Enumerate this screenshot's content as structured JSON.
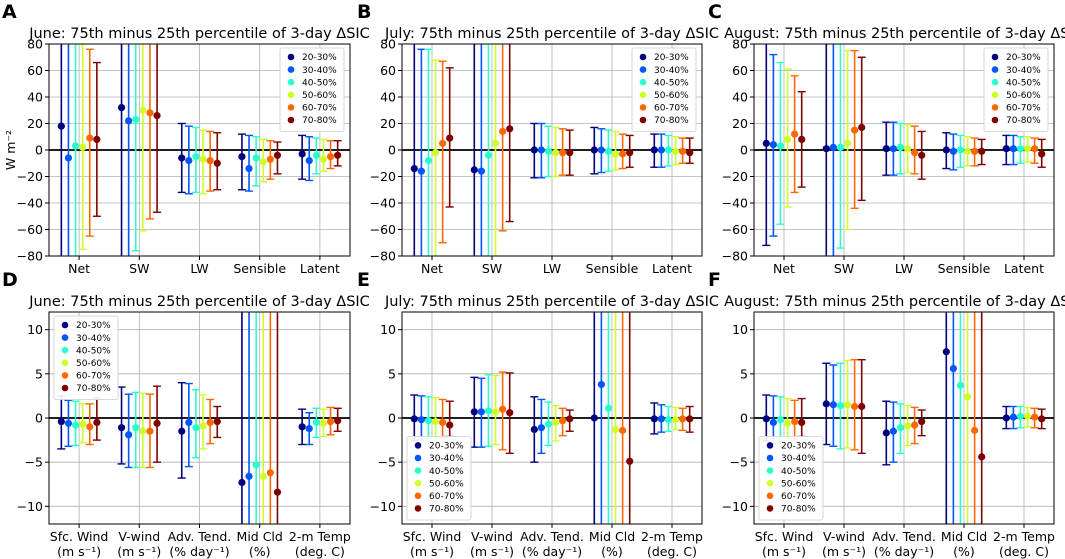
{
  "legend_labels": [
    "20-30%",
    "30-40%",
    "40-50%",
    "50-60%",
    "60-70%",
    "70-80%"
  ],
  "bin_colors": [
    "#00007f",
    "#0055ff",
    "#29ffce",
    "#ceff29",
    "#ff6800",
    "#7f0000"
  ],
  "chart_data": [
    {
      "type": "errorbar",
      "panel_letter": "A",
      "title": "June: 75th minus 25th percentile of 3-day ΔSIC",
      "ylabel": "W m⁻²",
      "ylim": [
        -80,
        80
      ],
      "yticks": [
        -80,
        -60,
        -40,
        -20,
        0,
        20,
        40,
        60,
        80
      ],
      "grid": true,
      "legend_position": "top-right",
      "categories": [
        "Net",
        "SW",
        "LW",
        "Sensible",
        "Latent"
      ],
      "series": [
        {
          "name": "20-30%",
          "values": [
            18,
            32,
            -6,
            -5,
            -3
          ],
          "lower": [
            -120,
            -120,
            -32,
            -30,
            -22
          ],
          "upper": [
            120,
            120,
            20,
            12,
            11
          ]
        },
        {
          "name": "30-40%",
          "values": [
            -6,
            22,
            -8,
            -14,
            -8
          ],
          "lower": [
            -120,
            -120,
            -33,
            -31,
            -23
          ],
          "upper": [
            120,
            120,
            18,
            11,
            10
          ]
        },
        {
          "name": "40-50%",
          "values": [
            3,
            23,
            -5,
            -6,
            -4
          ],
          "lower": [
            -120,
            -76,
            -32,
            -27,
            -18
          ],
          "upper": [
            120,
            120,
            17,
            10,
            9
          ]
        },
        {
          "name": "50-60%",
          "values": [
            2,
            30,
            -7,
            -9,
            -7
          ],
          "lower": [
            -75,
            -61,
            -33,
            -24,
            -16
          ],
          "upper": [
            80,
            120,
            15,
            8,
            8
          ]
        },
        {
          "name": "60-70%",
          "values": [
            9,
            28,
            -8,
            -7,
            -5
          ],
          "lower": [
            -65,
            -52,
            -31,
            -22,
            -14
          ],
          "upper": [
            76,
            120,
            14,
            7,
            7
          ]
        },
        {
          "name": "70-80%",
          "values": [
            8,
            26,
            -10,
            -4,
            -4
          ],
          "lower": [
            -50,
            -47,
            -30,
            -18,
            -12
          ],
          "upper": [
            66,
            120,
            13,
            6,
            7
          ]
        }
      ]
    },
    {
      "type": "errorbar",
      "panel_letter": "B",
      "title": "July: 75th minus 25th percentile of 3-day ΔSIC",
      "ylabel": "",
      "ylim": [
        -80,
        80
      ],
      "yticks": [
        -80,
        -60,
        -40,
        -20,
        0,
        20,
        40,
        60,
        80
      ],
      "grid": true,
      "legend_position": "top-right",
      "categories": [
        "Net",
        "SW",
        "LW",
        "Sensible",
        "Latent"
      ],
      "series": [
        {
          "name": "20-30%",
          "values": [
            -14,
            -15,
            0,
            0,
            0
          ],
          "lower": [
            -120,
            -120,
            -21,
            -18,
            -13
          ],
          "upper": [
            120,
            120,
            20,
            17,
            12
          ]
        },
        {
          "name": "30-40%",
          "values": [
            -16,
            -16,
            0,
            0,
            0
          ],
          "lower": [
            -120,
            -120,
            -21,
            -17,
            -13
          ],
          "upper": [
            76,
            120,
            20,
            16,
            12
          ]
        },
        {
          "name": "40-50%",
          "values": [
            -8,
            -4,
            -1,
            -1,
            0
          ],
          "lower": [
            -120,
            -120,
            -20,
            -16,
            -12
          ],
          "upper": [
            76,
            120,
            18,
            15,
            11
          ]
        },
        {
          "name": "50-60%",
          "values": [
            -2,
            5,
            -2,
            -3,
            -1
          ],
          "lower": [
            -120,
            -95,
            -20,
            -15,
            -11
          ],
          "upper": [
            68,
            120,
            17,
            14,
            10
          ]
        },
        {
          "name": "60-70%",
          "values": [
            5,
            14,
            -2,
            -3,
            -1
          ],
          "lower": [
            -70,
            -61,
            -19,
            -14,
            -10
          ],
          "upper": [
            67,
            120,
            16,
            12,
            9
          ]
        },
        {
          "name": "70-80%",
          "values": [
            9,
            16,
            -2,
            -2,
            -2
          ],
          "lower": [
            -43,
            -54,
            -19,
            -13,
            -10
          ],
          "upper": [
            62,
            120,
            15,
            11,
            9
          ]
        }
      ]
    },
    {
      "type": "errorbar",
      "panel_letter": "C",
      "title": "August: 75th minus 25th percentile of 3-day ΔSIC",
      "ylabel": "",
      "ylim": [
        -80,
        80
      ],
      "yticks": [
        -80,
        -60,
        -40,
        -20,
        0,
        20,
        40,
        60,
        80
      ],
      "grid": true,
      "legend_position": "top-right",
      "categories": [
        "Net",
        "SW",
        "LW",
        "Sensible",
        "Latent"
      ],
      "series": [
        {
          "name": "20-30%",
          "values": [
            5,
            1,
            1,
            0,
            1
          ],
          "lower": [
            -72,
            -120,
            -19,
            -14,
            -11
          ],
          "upper": [
            120,
            120,
            21,
            13,
            11
          ]
        },
        {
          "name": "30-40%",
          "values": [
            4,
            2,
            1,
            -1,
            1
          ],
          "lower": [
            -65,
            -120,
            -19,
            -15,
            -11
          ],
          "upper": [
            72,
            120,
            21,
            12,
            11
          ]
        },
        {
          "name": "40-50%",
          "values": [
            3,
            2,
            2,
            0,
            1
          ],
          "lower": [
            -56,
            -74,
            -18,
            -13,
            -10
          ],
          "upper": [
            66,
            120,
            20,
            11,
            10
          ]
        },
        {
          "name": "50-60%",
          "values": [
            8,
            5,
            1,
            -1,
            1
          ],
          "lower": [
            -43,
            -60,
            -17,
            -12,
            -9
          ],
          "upper": [
            61,
            75,
            19,
            10,
            10
          ]
        },
        {
          "name": "60-70%",
          "values": [
            12,
            15,
            -2,
            -1,
            1
          ],
          "lower": [
            -32,
            -44,
            -18,
            -12,
            -10
          ],
          "upper": [
            56,
            75,
            18,
            9,
            9
          ]
        },
        {
          "name": "70-80%",
          "values": [
            8,
            17,
            -4,
            -1,
            -3
          ],
          "lower": [
            -28,
            -38,
            -22,
            -11,
            -13
          ],
          "upper": [
            44,
            70,
            14,
            8,
            8
          ]
        }
      ]
    },
    {
      "type": "errorbar",
      "panel_letter": "D",
      "title": "June: 75th minus 25th percentile of 3-day ΔSIC",
      "ylabel": "",
      "ylim": [
        -12,
        12
      ],
      "yticks": [
        -10,
        -5,
        0,
        5,
        10
      ],
      "grid": true,
      "legend_position": "top-left",
      "categories": [
        "Sfc. Wind\n(m s⁻¹)",
        "V-wind\n(m s⁻¹)",
        "Adv. Tend.\n(% day⁻¹)",
        "Mid Cld\n(%)",
        "2-m Temp\n(deg. C)"
      ],
      "series": [
        {
          "name": "20-30%",
          "values": [
            -0.4,
            -1.1,
            -1.5,
            -7.3,
            -1.0
          ],
          "lower": [
            -3.5,
            -5.2,
            -6.8,
            -15,
            -3.0
          ],
          "upper": [
            2.5,
            3.5,
            4.0,
            15,
            1.0
          ]
        },
        {
          "name": "30-40%",
          "values": [
            -0.6,
            -1.9,
            -0.5,
            -6.6,
            -1.2
          ],
          "lower": [
            -3.2,
            -5.6,
            -5.5,
            -15,
            -3.0
          ],
          "upper": [
            2.0,
            2.7,
            3.9,
            15,
            0.6
          ]
        },
        {
          "name": "40-50%",
          "values": [
            -0.8,
            -1.1,
            -1.1,
            -5.3,
            -0.5
          ],
          "lower": [
            -3.1,
            -5.6,
            -4.5,
            -15,
            -2.2
          ],
          "upper": [
            1.9,
            2.9,
            3.2,
            15,
            1.1
          ]
        },
        {
          "name": "50-60%",
          "values": [
            -0.7,
            -1.5,
            -0.9,
            -6.6,
            -0.6
          ],
          "lower": [
            -2.8,
            -5.6,
            -3.5,
            -15,
            -2.1
          ],
          "upper": [
            1.6,
            2.8,
            2.6,
            15,
            1.0
          ]
        },
        {
          "name": "60-70%",
          "values": [
            -1.0,
            -1.5,
            -0.5,
            -6.2,
            -0.4
          ],
          "lower": [
            -3.0,
            -5.6,
            -2.9,
            -15,
            -1.9
          ],
          "upper": [
            1.6,
            2.7,
            2.1,
            15,
            1.2
          ]
        },
        {
          "name": "70-80%",
          "values": [
            -0.5,
            -0.6,
            -0.4,
            -8.4,
            -0.3
          ],
          "lower": [
            -2.5,
            -5.0,
            -2.2,
            -15,
            -1.5
          ],
          "upper": [
            2.3,
            3.6,
            1.3,
            15,
            1.1
          ]
        }
      ]
    },
    {
      "type": "errorbar",
      "panel_letter": "E",
      "title": "July: 75th minus 25th percentile of 3-day ΔSIC",
      "ylabel": "",
      "ylim": [
        -12,
        12
      ],
      "yticks": [
        -10,
        -5,
        0,
        5,
        10
      ],
      "grid": true,
      "legend_position": "bottom-left",
      "categories": [
        "Sfc. Wind\n(m s⁻¹)",
        "V-wind\n(m s⁻¹)",
        "Adv. Tend.\n(% day⁻¹)",
        "Mid Cld\n(%)",
        "2-m Temp\n(deg. C)"
      ],
      "series": [
        {
          "name": "20-30%",
          "values": [
            -0.1,
            0.7,
            -1.3,
            0.0,
            -0.1
          ],
          "lower": [
            -2.6,
            -3.3,
            -5.0,
            -15,
            -1.8
          ],
          "upper": [
            2.6,
            4.6,
            2.4,
            15,
            1.7
          ]
        },
        {
          "name": "30-40%",
          "values": [
            -0.2,
            0.7,
            -1.1,
            3.8,
            -0.1
          ],
          "lower": [
            -2.5,
            -3.3,
            -4.0,
            -15,
            -1.6
          ],
          "upper": [
            2.5,
            4.5,
            2.1,
            15,
            1.5
          ]
        },
        {
          "name": "40-50%",
          "values": [
            -0.3,
            0.8,
            -0.7,
            1.1,
            -0.2
          ],
          "lower": [
            -2.4,
            -3.2,
            -3.1,
            -15,
            -1.5
          ],
          "upper": [
            2.4,
            4.9,
            1.8,
            15,
            1.3
          ]
        },
        {
          "name": "50-60%",
          "values": [
            -0.4,
            0.7,
            -0.5,
            -1.3,
            -0.2
          ],
          "lower": [
            -2.3,
            -3.0,
            -2.6,
            -15,
            -1.3
          ],
          "upper": [
            2.3,
            4.8,
            1.4,
            15,
            1.2
          ]
        },
        {
          "name": "60-70%",
          "values": [
            -0.5,
            1.0,
            -0.3,
            -1.4,
            -0.1
          ],
          "lower": [
            -2.2,
            -3.6,
            -2.0,
            -15,
            -1.4
          ],
          "upper": [
            2.1,
            5.2,
            1.1,
            15,
            1.1
          ]
        },
        {
          "name": "70-80%",
          "values": [
            -0.8,
            0.6,
            -0.1,
            -4.9,
            -0.1
          ],
          "lower": [
            -2.1,
            -4.0,
            -1.5,
            -15,
            -1.6
          ],
          "upper": [
            1.9,
            5.1,
            0.9,
            15,
            1.3
          ]
        }
      ]
    },
    {
      "type": "errorbar",
      "panel_letter": "F",
      "title": "August: 75th minus 25th percentile of 3-day ΔSIC",
      "ylabel": "",
      "ylim": [
        -12,
        12
      ],
      "yticks": [
        -10,
        -5,
        0,
        5,
        10
      ],
      "grid": true,
      "legend_position": "bottom-left",
      "categories": [
        "Sfc. Wind\n(m s⁻¹)",
        "V-wind\n(m s⁻¹)",
        "Adv. Tend.\n(% day⁻¹)",
        "Mid Cld\n(%)",
        "2-m Temp\n(deg. C)"
      ],
      "series": [
        {
          "name": "20-30%",
          "values": [
            -0.1,
            1.6,
            -1.7,
            7.5,
            0.0
          ],
          "lower": [
            -2.6,
            -3.0,
            -5.3,
            -15,
            -1.2
          ],
          "upper": [
            2.6,
            6.2,
            1.9,
            15,
            1.3
          ]
        },
        {
          "name": "30-40%",
          "values": [
            -0.5,
            1.5,
            -1.5,
            5.6,
            0.1
          ],
          "lower": [
            -2.9,
            -3.2,
            -5.0,
            -15,
            -1.2
          ],
          "upper": [
            2.5,
            6.0,
            1.8,
            15,
            1.3
          ]
        },
        {
          "name": "40-50%",
          "values": [
            -0.2,
            1.4,
            -1.1,
            3.7,
            0.2
          ],
          "lower": [
            -2.7,
            -3.5,
            -4.0,
            -15,
            -1.1
          ],
          "upper": [
            2.4,
            6.2,
            1.6,
            15,
            1.3
          ]
        },
        {
          "name": "50-60%",
          "values": [
            -0.6,
            1.5,
            -0.9,
            2.4,
            0.2
          ],
          "lower": [
            -2.8,
            -3.4,
            -3.1,
            -15,
            -1.0
          ],
          "upper": [
            2.2,
            6.5,
            1.4,
            15,
            1.2
          ]
        },
        {
          "name": "60-70%",
          "values": [
            -0.4,
            1.3,
            -0.8,
            -1.4,
            0.1
          ],
          "lower": [
            -2.5,
            -3.6,
            -2.9,
            -15,
            -1.1
          ],
          "upper": [
            2.0,
            6.6,
            1.2,
            15,
            1.1
          ]
        },
        {
          "name": "70-80%",
          "values": [
            -0.5,
            1.3,
            -0.4,
            -4.4,
            -0.1
          ],
          "lower": [
            -2.1,
            -4.0,
            -2.0,
            -15,
            -1.2
          ],
          "upper": [
            2.2,
            6.6,
            0.9,
            15,
            1.0
          ]
        }
      ]
    }
  ]
}
